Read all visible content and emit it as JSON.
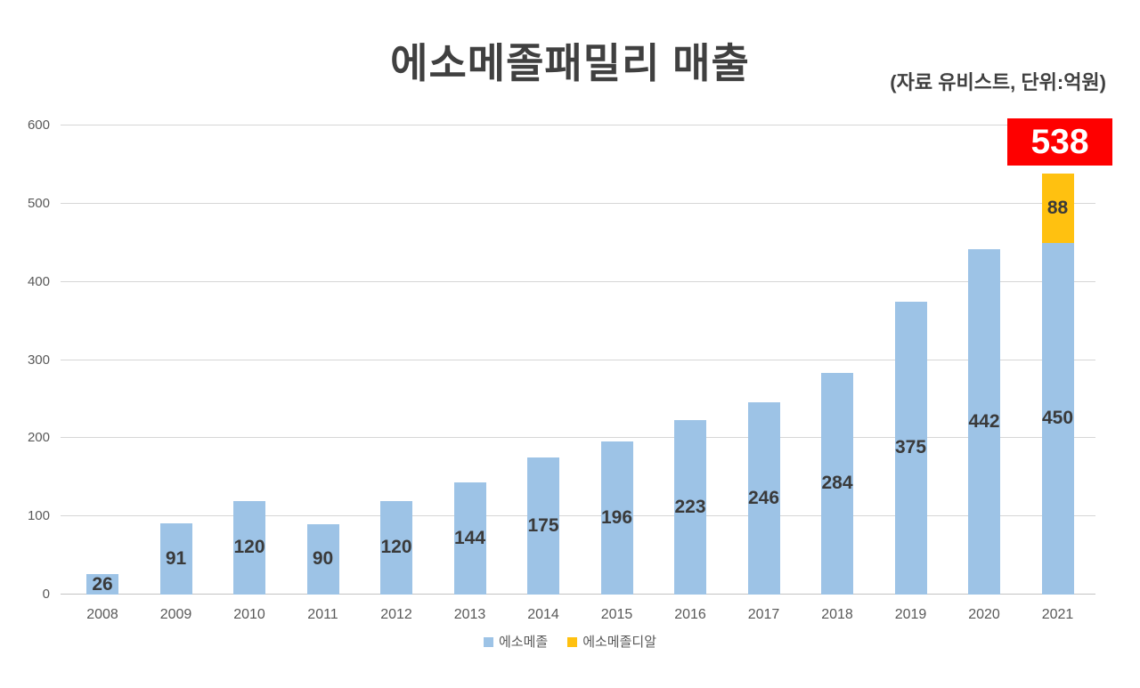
{
  "header": {
    "title": "에소메졸패밀리 매출",
    "subtitle": "(자료 유비스트, 단위:억원)"
  },
  "colors": {
    "series_primary": "#9DC3E6",
    "series_secondary": "#FFC110",
    "badge_background": "#FE0000",
    "badge_text": "#FFFFFF",
    "title_text": "#404040",
    "axis_text": "#595959",
    "bar_label_text": "#3A3A3A",
    "gridline": "#D6D6D6"
  },
  "chart_data": {
    "type": "bar",
    "stacked": true,
    "title": "에소메졸패밀리 매출",
    "subtitle": "(자료 유비스트, 단위:억원)",
    "xlabel": "",
    "ylabel": "",
    "categories": [
      "2008",
      "2009",
      "2010",
      "2011",
      "2012",
      "2013",
      "2014",
      "2015",
      "2016",
      "2017",
      "2018",
      "2019",
      "2020",
      "2021"
    ],
    "series": [
      {
        "name": "에소메졸",
        "color": "#9DC3E6",
        "values": [
          26,
          91,
          120,
          90,
          120,
          144,
          175,
          196,
          223,
          246,
          284,
          375,
          442,
          450
        ]
      },
      {
        "name": "에소메졸디알",
        "color": "#FFC110",
        "values": [
          0,
          0,
          0,
          0,
          0,
          0,
          0,
          0,
          0,
          0,
          0,
          0,
          0,
          88
        ]
      }
    ],
    "value_labels_position": "inside-center",
    "yticks": [
      0,
      100,
      200,
      300,
      400,
      500,
      600
    ],
    "ylim": [
      0,
      600
    ],
    "grid": true,
    "legend_position": "bottom",
    "annotations": [
      {
        "category": "2021",
        "text": "538",
        "type": "total-callout",
        "background": "#FE0000",
        "text_color": "#FFFFFF"
      }
    ]
  }
}
